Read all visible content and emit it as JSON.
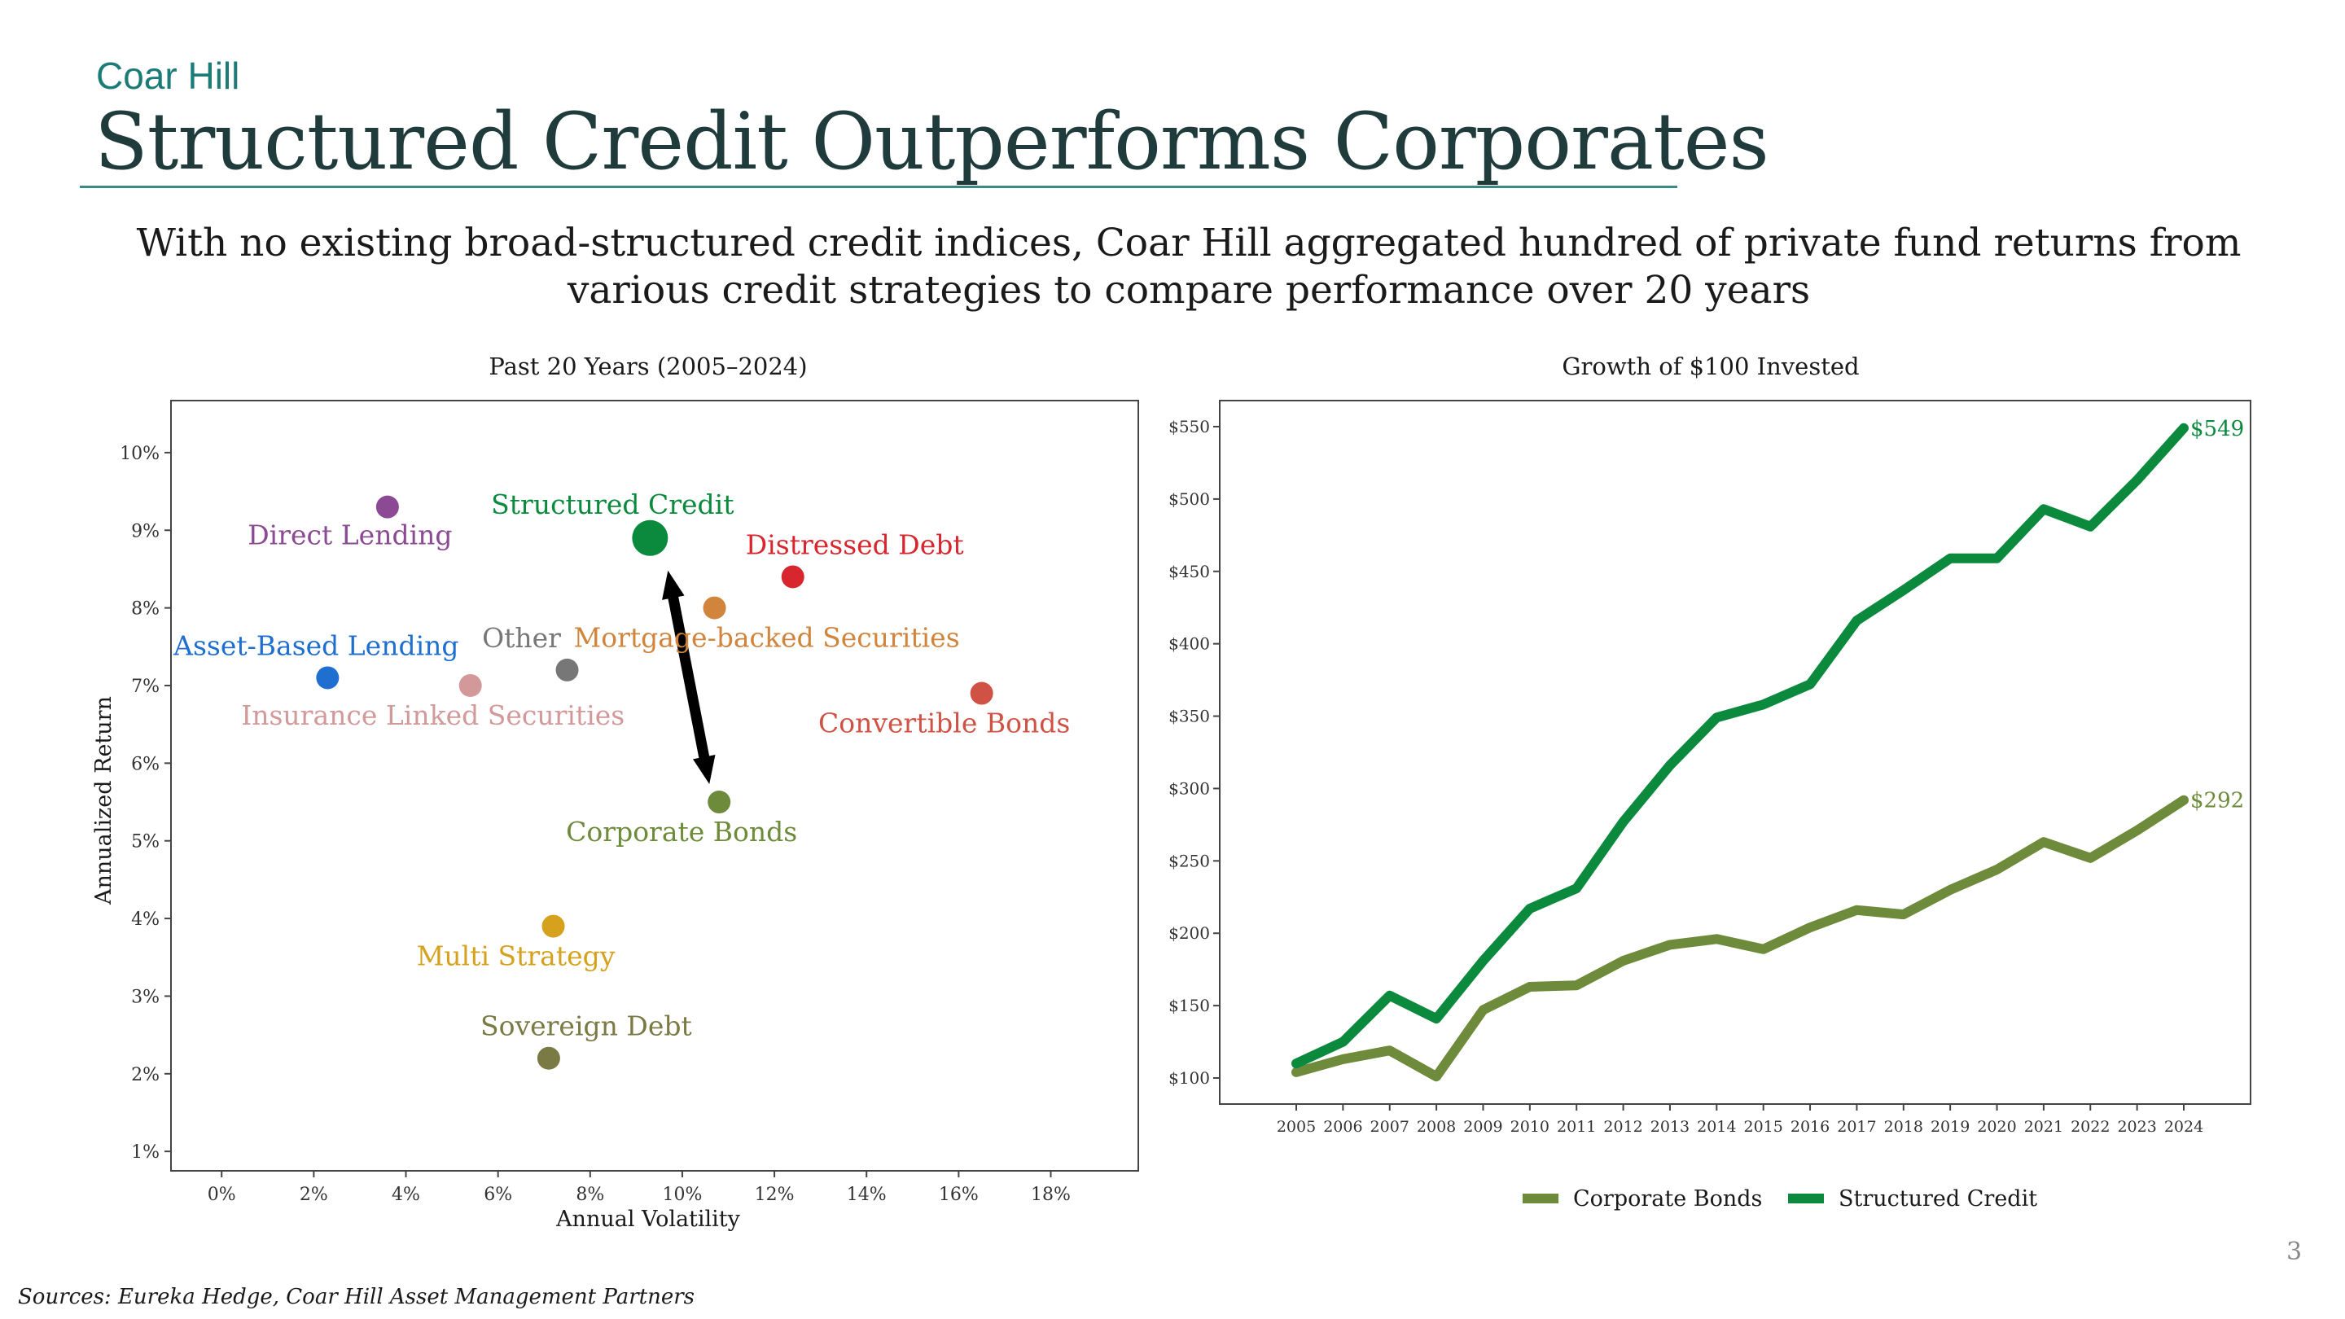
{
  "brand": "Coar Hill",
  "title": "Structured Credit Outperforms Corporates",
  "subtitle": "With no existing broad-structured credit indices, Coar Hill aggregated hundred of private fund returns from various credit strategies to compare performance over 20 years",
  "source": "Sources: Eureka Hedge, Coar Hill Asset Management Partners",
  "page_number": "3",
  "chart_data": [
    {
      "type": "scatter",
      "title": "Past 20 Years (2005–2024)",
      "xlabel": "Annual Volatility",
      "ylabel": "Annualized Return",
      "xlim": [
        -0.011,
        0.199
      ],
      "ylim": [
        0.0075,
        0.1067
      ],
      "x_ticks": [
        0,
        0.02,
        0.04,
        0.06,
        0.08,
        0.1,
        0.12,
        0.14,
        0.16,
        0.18
      ],
      "x_tick_labels": [
        "0%",
        "2%",
        "4%",
        "6%",
        "8%",
        "10%",
        "12%",
        "14%",
        "16%",
        "18%"
      ],
      "y_ticks": [
        0.01,
        0.02,
        0.03,
        0.04,
        0.05,
        0.06,
        0.07,
        0.08,
        0.09,
        0.1
      ],
      "y_tick_labels": [
        "1%",
        "2%",
        "3%",
        "4%",
        "5%",
        "6%",
        "7%",
        "8%",
        "9%",
        "10%"
      ],
      "grid": false,
      "annotation": "arrow between Structured Credit and Corporate Bonds",
      "points": [
        {
          "name": "Direct Lending",
          "x": 0.036,
          "y": 0.093,
          "color": "#8b4a93",
          "label_pos": "below"
        },
        {
          "name": "Structured Credit",
          "x": 0.093,
          "y": 0.089,
          "color": "#0b8a3e",
          "label_pos": "above",
          "highlight": true
        },
        {
          "name": "Distressed Debt",
          "x": 0.124,
          "y": 0.084,
          "color": "#d8262e",
          "label_pos": "above"
        },
        {
          "name": "Mortgage-backed Securities",
          "x": 0.107,
          "y": 0.08,
          "color": "#d0843c",
          "label_pos": "below"
        },
        {
          "name": "Asset-Based Lending",
          "x": 0.023,
          "y": 0.071,
          "color": "#1f6fd0",
          "label_pos": "above"
        },
        {
          "name": "Other",
          "x": 0.075,
          "y": 0.072,
          "color": "#777777",
          "label_pos": "above"
        },
        {
          "name": "Insurance Linked Securities",
          "x": 0.054,
          "y": 0.07,
          "color": "#d3999a",
          "label_pos": "below"
        },
        {
          "name": "Convertible Bonds",
          "x": 0.165,
          "y": 0.069,
          "color": "#cf5244",
          "label_pos": "below"
        },
        {
          "name": "Corporate Bonds",
          "x": 0.108,
          "y": 0.055,
          "color": "#6d8b3a",
          "label_pos": "below"
        },
        {
          "name": "Multi Strategy",
          "x": 0.072,
          "y": 0.039,
          "color": "#d6a11c",
          "label_pos": "below"
        },
        {
          "name": "Sovereign Debt",
          "x": 0.071,
          "y": 0.022,
          "color": "#7a7a44",
          "label_pos": "above"
        }
      ]
    },
    {
      "type": "line",
      "title": "Growth of $100 Invested",
      "ylim": [
        82,
        568
      ],
      "y_ticks": [
        100,
        150,
        200,
        250,
        300,
        350,
        400,
        450,
        500,
        550
      ],
      "y_tick_labels": [
        "$100",
        "$150",
        "$200",
        "$250",
        "$300",
        "$350",
        "$400",
        "$450",
        "$500",
        "$550"
      ],
      "x": [
        "2005",
        "2006",
        "2007",
        "2008",
        "2009",
        "2010",
        "2011",
        "2012",
        "2013",
        "2014",
        "2015",
        "2016",
        "2017",
        "2018",
        "2019",
        "2020",
        "2021",
        "2022",
        "2023",
        "2024"
      ],
      "grid": false,
      "legend": "bottom",
      "series": [
        {
          "name": "Corporate Bonds",
          "color": "#6d8b3a",
          "end_label": "$292",
          "values": [
            104,
            113,
            119,
            101,
            147,
            163,
            164,
            181,
            192,
            196,
            189,
            204,
            216,
            213,
            230,
            244,
            263,
            252,
            271,
            292
          ]
        },
        {
          "name": "Structured Credit",
          "color": "#0b8a3e",
          "end_label": "$549",
          "values": [
            110,
            125,
            157,
            141,
            181,
            217,
            231,
            277,
            316,
            349,
            358,
            372,
            416,
            437,
            459,
            459,
            493,
            481,
            513,
            549
          ]
        }
      ]
    }
  ]
}
